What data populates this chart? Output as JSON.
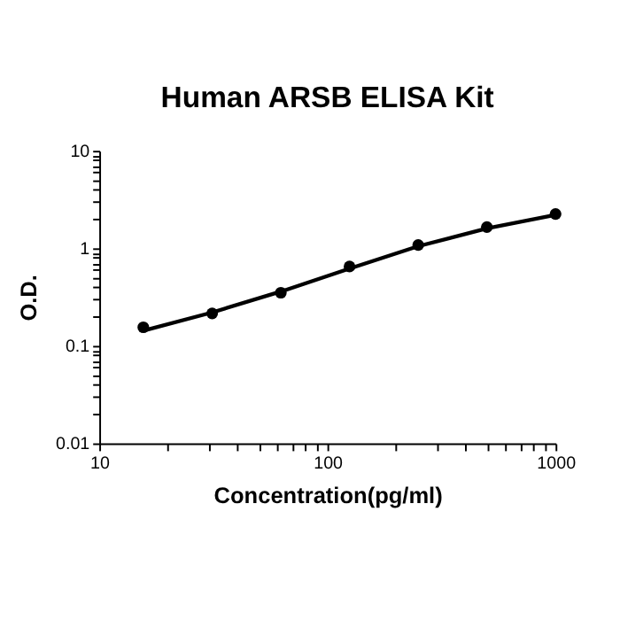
{
  "chart_data": {
    "type": "scatter",
    "title": "Human ARSB ELISA Kit",
    "xlabel": "Concentration(pg/ml)",
    "ylabel": "O.D.",
    "log": "xy",
    "grid": false,
    "marker": "circle",
    "x": [
      15.6,
      31.25,
      62.5,
      125,
      250,
      500,
      1000
    ],
    "series": [
      {
        "type": "line",
        "color": "#000000",
        "line_style": "solid",
        "marker": "none",
        "values": [
          0.143,
          0.22,
          0.36,
          0.62,
          1.05,
          1.6,
          2.2
        ]
      },
      {
        "color": "#000000",
        "values": [
          0.155,
          0.215,
          0.35,
          0.65,
          1.08,
          1.65,
          2.25
        ]
      }
    ],
    "xlim": [
      10,
      1000
    ],
    "ylim": [
      0.01,
      10
    ],
    "xticks": [
      10,
      {
        "value": 20,
        "label": null
      },
      {
        "value": 30,
        "label": null
      },
      {
        "value": 40,
        "label": null
      },
      {
        "value": 50,
        "label": null
      },
      {
        "value": 60,
        "label": null
      },
      {
        "value": 70,
        "label": null
      },
      {
        "value": 80,
        "label": null
      },
      {
        "value": 90,
        "label": null
      },
      100,
      {
        "value": 200,
        "label": null
      },
      {
        "value": 300,
        "label": null
      },
      {
        "value": 400,
        "label": null
      },
      {
        "value": 500,
        "label": null
      },
      {
        "value": 600,
        "label": null
      },
      {
        "value": 700,
        "label": null
      },
      {
        "value": 800,
        "label": null
      },
      {
        "value": 900,
        "label": null
      },
      1000
    ],
    "yticks": [
      0.01,
      {
        "value": 0.02,
        "label": null
      },
      {
        "value": 0.03,
        "label": null
      },
      {
        "value": 0.04,
        "label": null
      },
      {
        "value": 0.05,
        "label": null
      },
      {
        "value": 0.06,
        "label": null
      },
      {
        "value": 0.07,
        "label": null
      },
      {
        "value": 0.08,
        "label": null
      },
      {
        "value": 0.09,
        "label": null
      },
      0.1,
      {
        "value": 0.2,
        "label": null
      },
      {
        "value": 0.3,
        "label": null
      },
      {
        "value": 0.4,
        "label": null
      },
      {
        "value": 0.5,
        "label": null
      },
      {
        "value": 0.6,
        "label": null
      },
      {
        "value": 0.7,
        "label": null
      },
      {
        "value": 0.8,
        "label": null
      },
      {
        "value": 0.9,
        "label": null
      },
      1,
      {
        "value": 2,
        "label": null
      },
      {
        "value": 3,
        "label": null
      },
      {
        "value": 4,
        "label": null
      },
      {
        "value": 5,
        "label": null
      },
      {
        "value": 6,
        "label": null
      },
      {
        "value": 7,
        "label": null
      },
      {
        "value": 8,
        "label": null
      },
      {
        "value": 9,
        "label": null
      },
      10
    ]
  }
}
